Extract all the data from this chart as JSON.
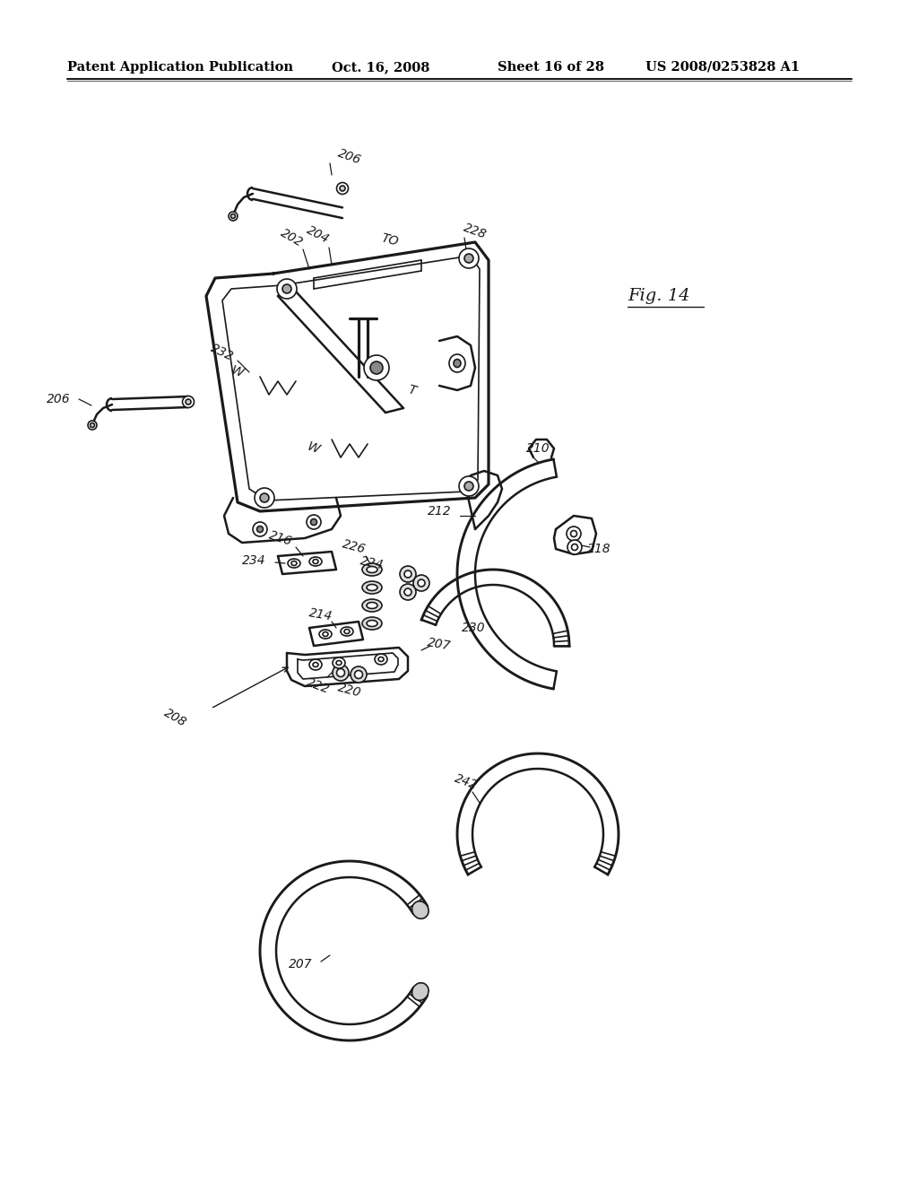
{
  "title": "Patent Application Publication",
  "date": "Oct. 16, 2008",
  "sheet": "Sheet 16 of 28",
  "patent_num": "US 2008/0253828 A1",
  "fig_label": "Fig. 14",
  "background": "#ffffff",
  "line_color": "#1a1a1a",
  "header_fontsize": 10.5
}
